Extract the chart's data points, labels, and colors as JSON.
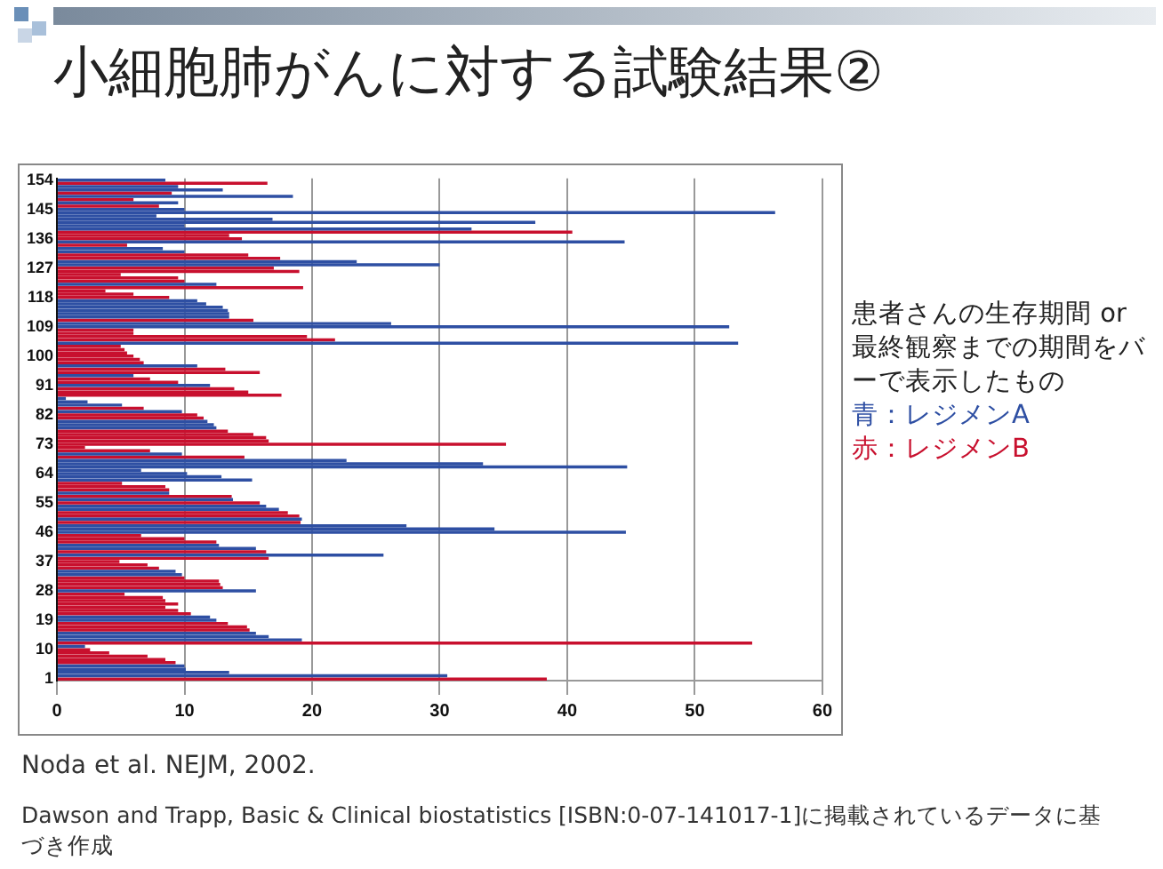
{
  "chart_data": {
    "type": "bar",
    "orientation": "horizontal",
    "title": "小細胞肺がんに対する試験結果②",
    "categories": [
      "154",
      null,
      null,
      null,
      null,
      null,
      null,
      null,
      null,
      "145",
      null,
      null,
      null,
      null,
      null,
      null,
      null,
      null,
      "136",
      null,
      null,
      null,
      null,
      null,
      null,
      null,
      null,
      "127",
      null,
      null,
      null,
      null,
      null,
      null,
      null,
      null,
      "118",
      null,
      null,
      null,
      null,
      null,
      null,
      null,
      null,
      "109",
      null,
      null,
      null,
      null,
      null,
      null,
      null,
      null,
      "100",
      null,
      null,
      null,
      null,
      null,
      null,
      null,
      null,
      "91",
      null,
      null,
      null,
      null,
      null,
      null,
      null,
      null,
      "82",
      null,
      null,
      null,
      null,
      null,
      null,
      null,
      null,
      "73",
      null,
      null,
      null,
      null,
      null,
      null,
      null,
      null,
      "64",
      null,
      null,
      null,
      null,
      null,
      null,
      null,
      null,
      "55",
      null,
      null,
      null,
      null,
      null,
      null,
      null,
      null,
      "46",
      null,
      null,
      null,
      null,
      null,
      null,
      null,
      null,
      "37",
      null,
      null,
      null,
      null,
      null,
      null,
      null,
      null,
      "28",
      null,
      null,
      null,
      null,
      null,
      null,
      null,
      null,
      "19",
      null,
      null,
      null,
      null,
      null,
      null,
      null,
      null,
      "10",
      null,
      null,
      null,
      null,
      null,
      null,
      null,
      null,
      "1"
    ],
    "series": [
      {
        "name": "青：レジメンA",
        "color": "#2e4fa3",
        "values": [
          8.5,
          null,
          9.5,
          13,
          null,
          18.5,
          null,
          9.5,
          null,
          10,
          56.3,
          7.8,
          16.9,
          37.5,
          10,
          32.5,
          null,
          null,
          null,
          44.5,
          null,
          8.3,
          10,
          null,
          null,
          23.5,
          30,
          null,
          null,
          null,
          null,
          null,
          12.5,
          null,
          null,
          null,
          null,
          11,
          11.7,
          13,
          13.4,
          13.5,
          13.5,
          null,
          26.2,
          52.7,
          null,
          null,
          null,
          null,
          53.4,
          null,
          null,
          null,
          null,
          null,
          null,
          11,
          null,
          null,
          6,
          null,
          null,
          12,
          null,
          null,
          null,
          0.7,
          2.4,
          5.1,
          null,
          9.8,
          null,
          null,
          11.8,
          12.3,
          12.5,
          null,
          null,
          null,
          null,
          null,
          null,
          null,
          9.8,
          null,
          22.7,
          33.4,
          44.7,
          6.6,
          10.2,
          12.9,
          15.3,
          null,
          null,
          null,
          8.8,
          null,
          13.8,
          null,
          16.4,
          17.4,
          null,
          null,
          19.2,
          null,
          27.4,
          34.3,
          44.6,
          null,
          null,
          null,
          12.7,
          15.6,
          null,
          25.6,
          null,
          null,
          null,
          null,
          9.3,
          9.8,
          null,
          null,
          null,
          null,
          15.6,
          null,
          null,
          null,
          null,
          null,
          null,
          null,
          12,
          12.5,
          null,
          null,
          null,
          15.6,
          16.6,
          19.2,
          null,
          2.2,
          null,
          null,
          null,
          null,
          null,
          10,
          10.1,
          13.5,
          30.6,
          null
        ]
      },
      {
        "name": "赤：レジメンB",
        "color": "#c8102e",
        "values": [
          null,
          16.5,
          null,
          null,
          9,
          null,
          6,
          null,
          8,
          null,
          null,
          null,
          null,
          null,
          null,
          null,
          40.4,
          13.5,
          14.5,
          null,
          5.5,
          null,
          null,
          15,
          17.5,
          null,
          null,
          17,
          19,
          5,
          9.5,
          10,
          null,
          19.3,
          3.8,
          6,
          8.8,
          null,
          null,
          null,
          null,
          null,
          null,
          15.4,
          null,
          null,
          6,
          6,
          19.6,
          21.8,
          null,
          5,
          5.3,
          5.5,
          6,
          6.5,
          6.8,
          null,
          13.2,
          15.9,
          null,
          7.3,
          9.5,
          null,
          13.9,
          15,
          17.6,
          null,
          null,
          null,
          6.8,
          null,
          11,
          11.5,
          null,
          null,
          null,
          13.4,
          15.4,
          16.4,
          16.6,
          35.2,
          2.2,
          7.3,
          null,
          14.7,
          null,
          null,
          null,
          null,
          null,
          null,
          null,
          5.1,
          8.5,
          8.8,
          null,
          13.7,
          null,
          15.9,
          null,
          null,
          18.1,
          19,
          null,
          19.1,
          null,
          null,
          null,
          6.6,
          10,
          12.5,
          null,
          null,
          16.4,
          null,
          16.6,
          4.9,
          7.1,
          8,
          null,
          null,
          10,
          12.7,
          12.8,
          13,
          null,
          5.3,
          8.3,
          8.5,
          9.5,
          8.5,
          9.5,
          10.5,
          null,
          null,
          13.4,
          14.9,
          15.1,
          null,
          null,
          null,
          54.5,
          null,
          2.6,
          4.1,
          7.1,
          8.5,
          9.3,
          null,
          null,
          null,
          null,
          38.4
        ]
      }
    ],
    "xlim": [
      0,
      60
    ],
    "xticks": [
      0,
      10,
      20,
      30,
      40,
      50,
      60
    ],
    "grid": "x",
    "legend": "right",
    "annotations": [
      "患者さんの生存期間 or 最終観察までの期間をバーで表示したもの",
      "Noda et al. NEJM, 2002.",
      "Dawson and Trapp, Basic & Clinical biostatistics [ISBN:0-07-141017-1]に掲載されているデータに基づき作成"
    ]
  }
}
